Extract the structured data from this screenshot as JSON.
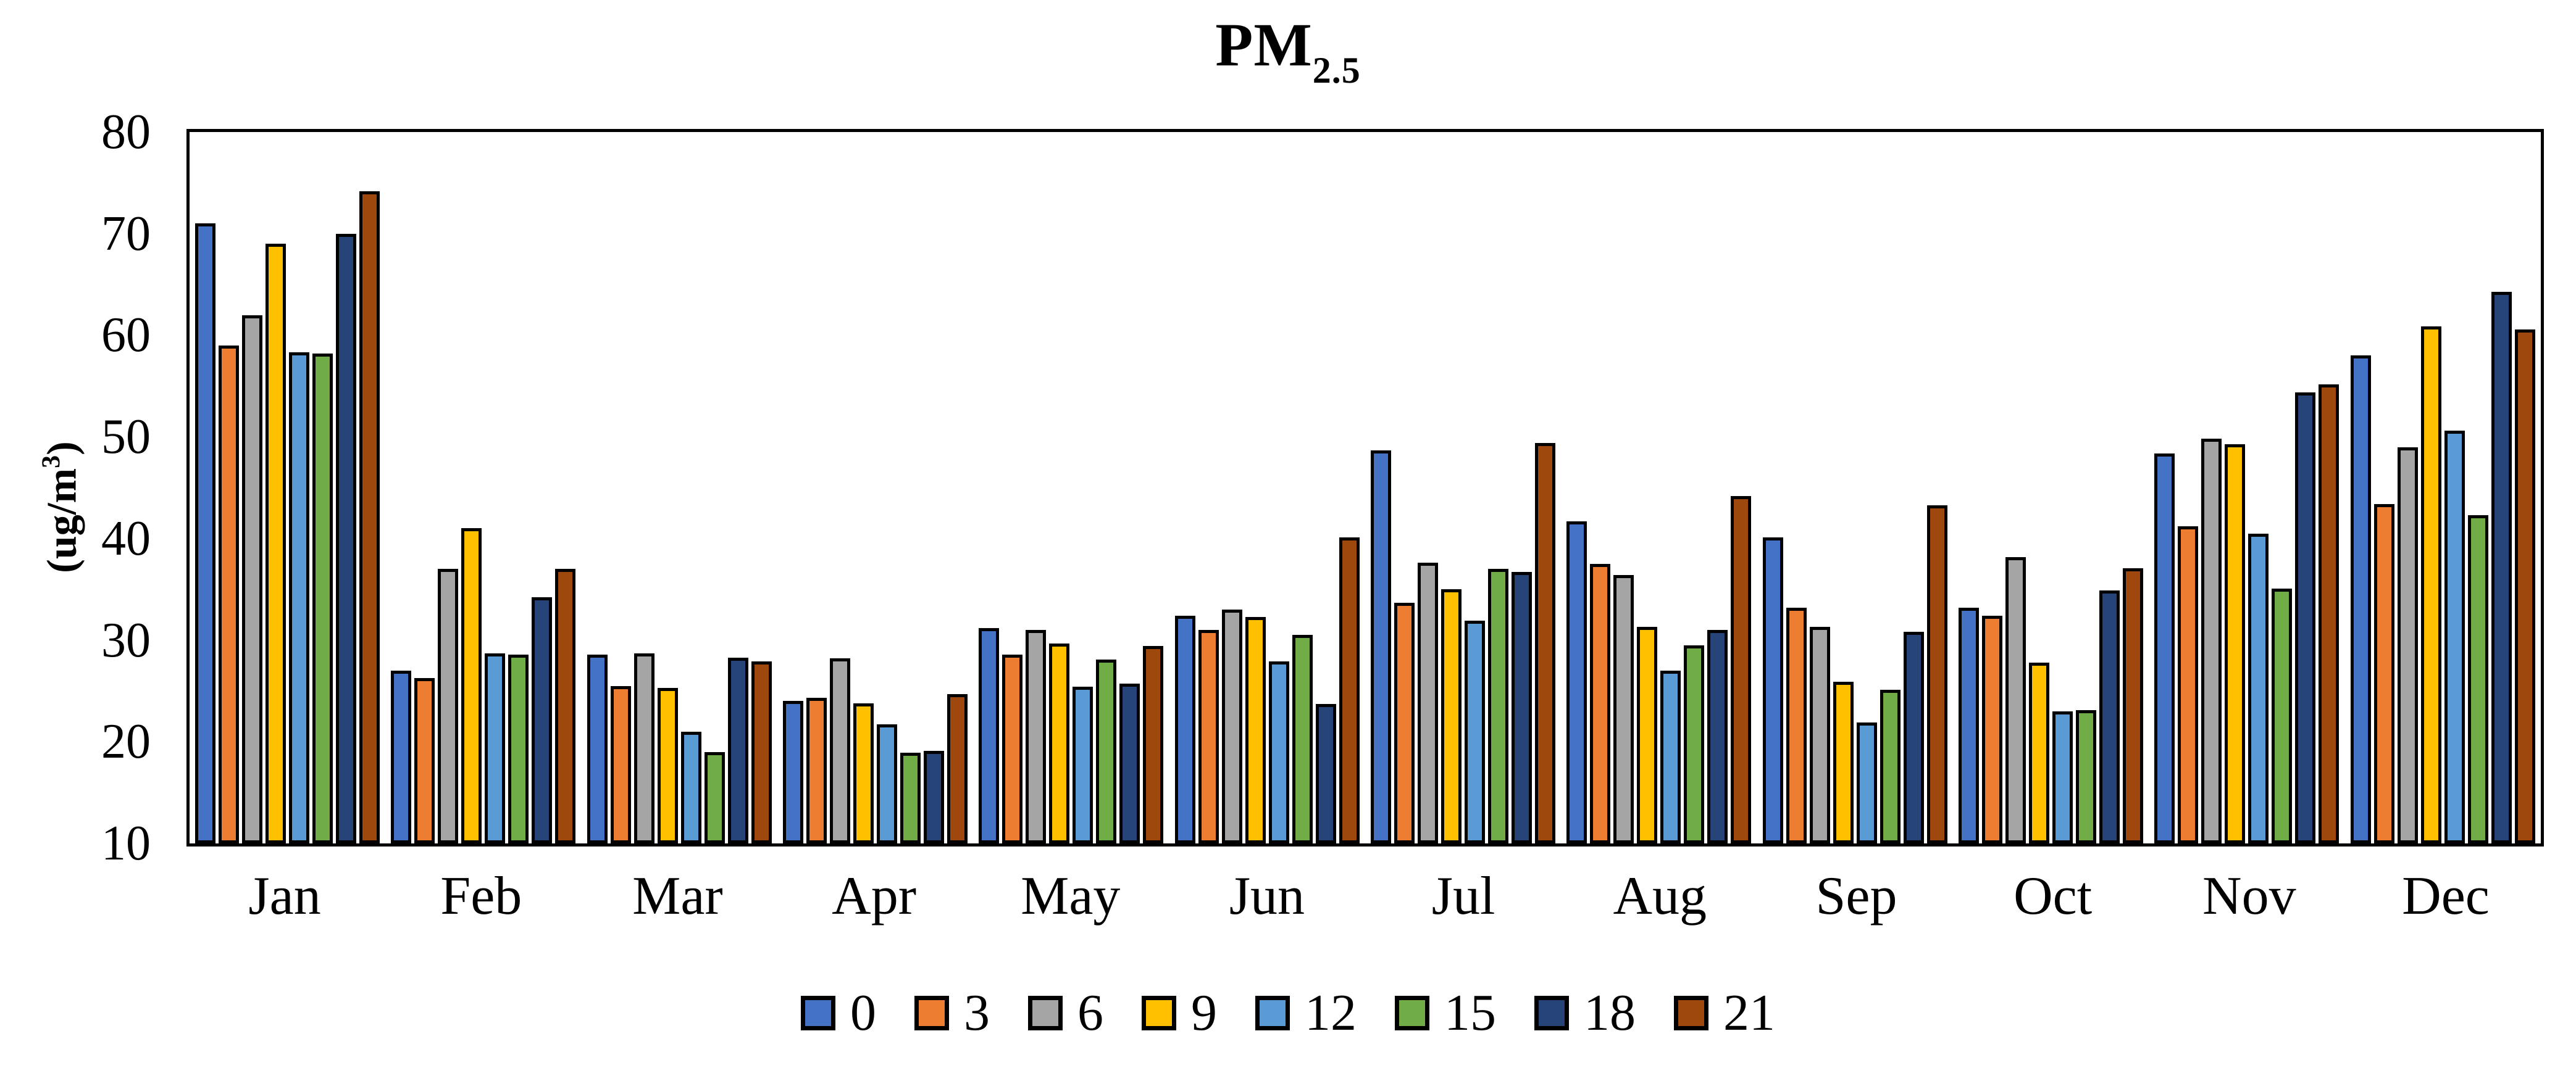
{
  "title": {
    "main": "PM",
    "subscript": "2.5"
  },
  "y_axis": {
    "label_prefix": "(ug/m",
    "label_sup": "3",
    "label_suffix": ")",
    "ticks": [
      80,
      70,
      60,
      50,
      40,
      30,
      20,
      10
    ]
  },
  "chart_data": {
    "type": "bar",
    "title": "PM2.5",
    "xlabel": "",
    "ylabel": "(ug/m3)",
    "ylim": [
      10,
      80
    ],
    "ytick_step": 10,
    "grid": false,
    "legend_position": "bottom",
    "bar_border_color": "#000000",
    "categories": [
      "Jan",
      "Feb",
      "Mar",
      "Apr",
      "May",
      "Jun",
      "Jul",
      "Aug",
      "Sep",
      "Oct",
      "Nov",
      "Dec"
    ],
    "series": [
      {
        "name": "0",
        "color": "#4472C4",
        "values": [
          71.0,
          27.0,
          28.6,
          24.0,
          31.2,
          32.4,
          48.7,
          41.7,
          40.1,
          33.2,
          48.4,
          58.0
        ]
      },
      {
        "name": "3",
        "color": "#ED7D31",
        "values": [
          59.0,
          26.3,
          25.5,
          24.3,
          28.6,
          31.0,
          33.7,
          37.5,
          33.2,
          32.4,
          41.2,
          43.4
        ]
      },
      {
        "name": "6",
        "color": "#A5A5A5",
        "values": [
          62.0,
          37.0,
          28.7,
          28.2,
          31.0,
          33.0,
          37.6,
          36.4,
          31.3,
          38.2,
          49.8,
          49.0
        ]
      },
      {
        "name": "9",
        "color": "#FFC000",
        "values": [
          69.0,
          41.0,
          25.3,
          23.8,
          29.7,
          32.3,
          35.0,
          31.3,
          25.9,
          27.8,
          49.3,
          60.9
        ]
      },
      {
        "name": "12",
        "color": "#5B9BD5",
        "values": [
          58.3,
          28.7,
          21.0,
          21.7,
          25.4,
          27.9,
          31.9,
          27.0,
          21.9,
          23.0,
          40.5,
          50.6
        ]
      },
      {
        "name": "15",
        "color": "#70AD47",
        "values": [
          58.2,
          28.6,
          19.0,
          18.9,
          28.1,
          30.5,
          37.0,
          29.5,
          25.1,
          23.1,
          35.1,
          42.3
        ]
      },
      {
        "name": "18",
        "color": "#264478",
        "values": [
          70.0,
          34.2,
          28.3,
          19.1,
          25.7,
          23.7,
          36.7,
          31.0,
          30.8,
          34.9,
          54.4,
          64.3
        ]
      },
      {
        "name": "21",
        "color": "#9E480E",
        "values": [
          74.2,
          37.0,
          27.9,
          24.7,
          29.4,
          40.1,
          49.4,
          44.2,
          43.3,
          37.1,
          55.2,
          60.6
        ]
      }
    ]
  }
}
